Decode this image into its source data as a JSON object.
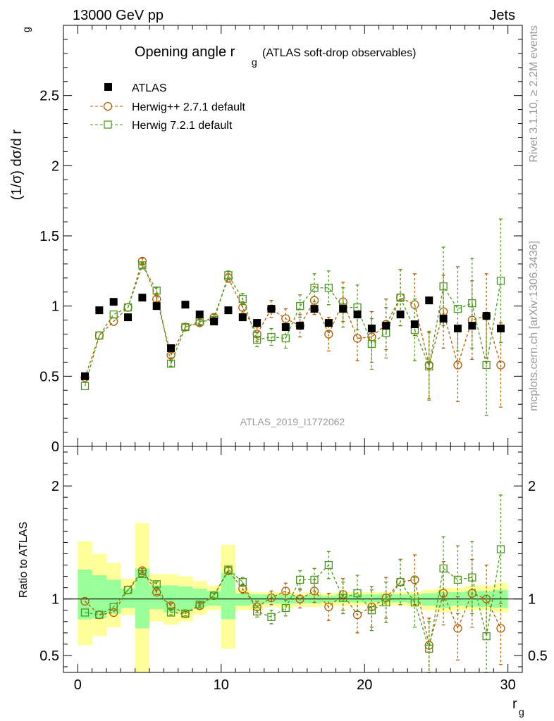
{
  "header": {
    "left": "13000 GeV pp",
    "right": "Jets"
  },
  "side_labels": {
    "rivet": "Rivet 3.1.10, ≥ 2.2M events",
    "mcplots": "mcplots.cern.ch [arXiv:1306.3436]"
  },
  "chart_data": [
    {
      "type": "scatter",
      "panel": "main",
      "title_main": "Opening angle r",
      "title_sub": "g",
      "title_tail": "(ATLAS soft-drop observables)",
      "ylabel": "(1/σ) dσ/d r",
      "ylabel_sub": "g",
      "watermark": "ATLAS_2019_I1772062",
      "xlim": [
        -1,
        31
      ],
      "ylim": [
        0,
        3
      ],
      "yticks": [
        0.5,
        1,
        1.5,
        2,
        2.5
      ],
      "ytick_labels": [
        "0.5",
        "1",
        "1.5",
        "2",
        "2.5"
      ],
      "y_zero_label": "0",
      "legend_position": "top-left",
      "x": [
        0.5,
        1.5,
        2.5,
        3.5,
        4.5,
        5.5,
        6.5,
        7.5,
        8.5,
        9.5,
        10.5,
        11.5,
        12.5,
        13.5,
        14.5,
        15.5,
        16.5,
        17.5,
        18.5,
        19.5,
        20.5,
        21.5,
        22.5,
        23.5,
        24.5,
        25.5,
        26.5,
        27.5,
        28.5,
        29.5
      ],
      "series": [
        {
          "name": "ATLAS",
          "color": "#000000",
          "marker": "filled-square",
          "values": [
            0.5,
            0.97,
            1.03,
            0.92,
            1.06,
            1.0,
            0.7,
            1.01,
            0.94,
            0.89,
            0.97,
            0.92,
            0.88,
            0.98,
            0.85,
            0.86,
            0.98,
            0.88,
            0.98,
            0.94,
            0.84,
            0.86,
            0.94,
            0.87,
            1.04,
            0.91,
            0.84,
            0.86,
            0.93,
            0.84
          ]
        },
        {
          "name": "Herwig++ 2.7.1 default",
          "color": "#b35c00",
          "marker": "open-circle",
          "values": [
            0.49,
            0.79,
            0.89,
            0.99,
            1.32,
            1.05,
            0.65,
            0.85,
            0.88,
            0.92,
            1.2,
            0.99,
            0.8,
            0.98,
            0.91,
            0.86,
            1.04,
            0.8,
            1.03,
            0.77,
            0.78,
            0.87,
            1.06,
            1.01,
            0.58,
            0.96,
            0.58,
            0.9,
            0.93,
            0.58
          ],
          "errors": [
            0.01,
            0.01,
            0.01,
            0.01,
            0.02,
            0.02,
            0.02,
            0.02,
            0.02,
            0.02,
            0.03,
            0.04,
            0.05,
            0.06,
            0.07,
            0.08,
            0.1,
            0.12,
            0.14,
            0.16,
            0.18,
            0.18,
            0.2,
            0.22,
            0.24,
            0.26,
            0.26,
            0.28,
            0.3,
            0.3
          ]
        },
        {
          "name": "Herwig 7.2.1 default",
          "color": "#4a9a1e",
          "marker": "open-square",
          "values": [
            0.43,
            0.79,
            0.94,
            0.99,
            1.29,
            1.11,
            0.59,
            0.85,
            0.89,
            0.9,
            1.22,
            1.05,
            0.76,
            0.78,
            0.77,
            1.0,
            1.13,
            1.13,
            0.99,
            0.99,
            0.73,
            0.81,
            1.06,
            0.83,
            0.57,
            1.14,
            0.98,
            1.02,
            0.58,
            1.18
          ],
          "errors": [
            0.01,
            0.01,
            0.01,
            0.01,
            0.02,
            0.02,
            0.02,
            0.02,
            0.02,
            0.02,
            0.03,
            0.04,
            0.05,
            0.06,
            0.07,
            0.08,
            0.1,
            0.12,
            0.14,
            0.16,
            0.18,
            0.18,
            0.2,
            0.22,
            0.24,
            0.28,
            0.3,
            0.32,
            0.36,
            0.44
          ]
        }
      ]
    },
    {
      "type": "scatter",
      "panel": "ratio",
      "ylabel": "Ratio to ATLAS",
      "xlabel": "r",
      "xlabel_sub": "g",
      "xlim": [
        -1,
        31
      ],
      "ylim": [
        0.35,
        2.35
      ],
      "xticks": [
        0,
        10,
        20,
        30
      ],
      "xtick_labels": [
        "0",
        "10",
        "20",
        "30"
      ],
      "yticks": [
        0.5,
        1,
        2
      ],
      "ytick_labels": [
        "0.5",
        "1",
        "2"
      ],
      "x": [
        0.5,
        1.5,
        2.5,
        3.5,
        4.5,
        5.5,
        6.5,
        7.5,
        8.5,
        9.5,
        10.5,
        11.5,
        12.5,
        13.5,
        14.5,
        15.5,
        16.5,
        17.5,
        18.5,
        19.5,
        20.5,
        21.5,
        22.5,
        23.5,
        24.5,
        25.5,
        26.5,
        27.5,
        28.5,
        29.5
      ],
      "bands": {
        "yellow_color": "#ffff99",
        "green_color": "#99ff99",
        "yellow_lo": [
          0.59,
          0.67,
          0.75,
          0.86,
          0.3,
          0.8,
          0.77,
          0.8,
          0.86,
          0.9,
          0.56,
          0.9,
          0.9,
          0.93,
          0.92,
          0.93,
          0.93,
          0.94,
          0.94,
          0.94,
          0.94,
          0.94,
          0.94,
          0.93,
          0.9,
          0.88,
          0.9,
          0.9,
          0.9,
          0.88
        ],
        "yellow_hi": [
          1.51,
          1.4,
          1.32,
          1.18,
          1.67,
          1.22,
          1.22,
          1.2,
          1.16,
          1.12,
          1.48,
          1.09,
          1.06,
          1.06,
          1.06,
          1.05,
          1.06,
          1.05,
          1.06,
          1.06,
          1.06,
          1.06,
          1.06,
          1.06,
          1.08,
          1.1,
          1.1,
          1.12,
          1.12,
          1.14
        ],
        "green_lo": [
          0.82,
          0.83,
          0.87,
          0.92,
          0.74,
          0.91,
          0.88,
          0.89,
          0.93,
          0.94,
          0.82,
          0.94,
          0.95,
          0.96,
          0.96,
          0.96,
          0.96,
          0.97,
          0.97,
          0.97,
          0.97,
          0.97,
          0.97,
          0.96,
          0.94,
          0.92,
          0.94,
          0.93,
          0.93,
          0.92
        ],
        "green_hi": [
          1.26,
          1.21,
          1.17,
          1.09,
          1.27,
          1.12,
          1.12,
          1.11,
          1.09,
          1.07,
          1.23,
          1.05,
          1.04,
          1.04,
          1.04,
          1.03,
          1.04,
          1.03,
          1.04,
          1.04,
          1.04,
          1.04,
          1.04,
          1.04,
          1.05,
          1.06,
          1.06,
          1.07,
          1.07,
          1.08
        ]
      },
      "series": [
        {
          "name": "Herwig++ 2.7.1 default",
          "color": "#b35c00",
          "marker": "open-circle",
          "values": [
            0.98,
            0.86,
            0.88,
            1.08,
            1.25,
            1.06,
            0.94,
            0.87,
            0.94,
            1.03,
            1.25,
            1.09,
            0.93,
            1.01,
            1.07,
            1.0,
            1.07,
            0.93,
            1.04,
            0.86,
            0.93,
            1.01,
            1.15,
            1.17,
            0.59,
            1.05,
            0.74,
            1.05,
            1.0,
            0.74
          ],
          "errors": [
            0.01,
            0.01,
            0.01,
            0.01,
            0.02,
            0.02,
            0.02,
            0.02,
            0.02,
            0.02,
            0.03,
            0.04,
            0.05,
            0.06,
            0.07,
            0.08,
            0.1,
            0.12,
            0.14,
            0.16,
            0.18,
            0.18,
            0.2,
            0.22,
            0.24,
            0.28,
            0.28,
            0.3,
            0.3,
            0.32
          ]
        },
        {
          "name": "Herwig 7.2.1 default",
          "color": "#4a9a1e",
          "marker": "open-square",
          "values": [
            0.88,
            0.86,
            0.93,
            1.08,
            1.22,
            1.13,
            0.88,
            0.87,
            0.95,
            1.03,
            1.26,
            1.15,
            0.89,
            0.84,
            0.92,
            1.17,
            1.17,
            1.3,
            1.01,
            1.05,
            0.9,
            0.97,
            1.15,
            0.97,
            0.56,
            1.27,
            1.17,
            1.19,
            0.67,
            1.44
          ],
          "errors": [
            0.01,
            0.01,
            0.01,
            0.01,
            0.02,
            0.02,
            0.02,
            0.02,
            0.02,
            0.02,
            0.03,
            0.04,
            0.05,
            0.06,
            0.07,
            0.08,
            0.1,
            0.12,
            0.14,
            0.16,
            0.18,
            0.18,
            0.2,
            0.22,
            0.24,
            0.28,
            0.3,
            0.32,
            0.36,
            0.48
          ]
        }
      ]
    }
  ]
}
